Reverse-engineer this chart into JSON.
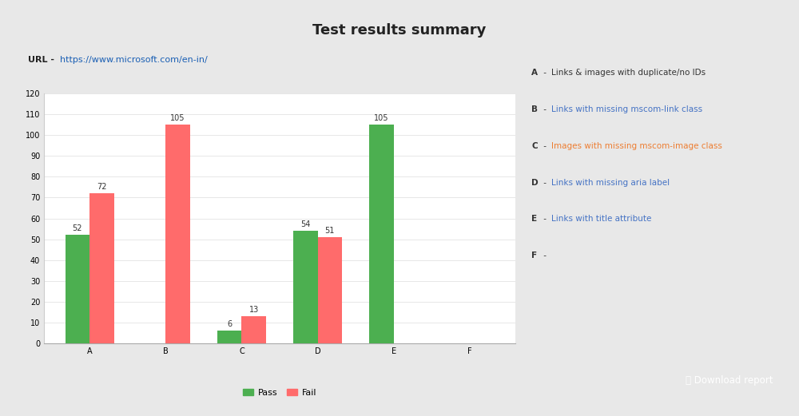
{
  "title": "Test results summary",
  "url_label": "URL - ",
  "url_text": "https://www.microsoft.com/en-in/",
  "categories": [
    "A",
    "B",
    "C",
    "D",
    "E",
    "F"
  ],
  "pass_values": [
    52,
    0,
    6,
    54,
    105,
    0
  ],
  "fail_values": [
    72,
    105,
    13,
    51,
    0,
    0
  ],
  "pass_color": "#4CAF50",
  "fail_color": "#FF6B6B",
  "ylim": [
    0,
    120
  ],
  "yticks": [
    0,
    10,
    20,
    30,
    40,
    50,
    60,
    70,
    80,
    90,
    100,
    110,
    120
  ],
  "legend_items": [
    {
      "label": "A",
      "label_color": "#333333",
      "dash": " - ",
      "desc": "Links & images with duplicate/no IDs",
      "desc_color": "#333333"
    },
    {
      "label": "B",
      "label_color": "#333333",
      "dash": " - ",
      "desc": "Links with missing mscom-link class",
      "desc_color": "#4472C4"
    },
    {
      "label": "C",
      "label_color": "#333333",
      "dash": " - ",
      "desc": "Images with missing mscom-image class",
      "desc_color": "#ED7D31"
    },
    {
      "label": "D",
      "label_color": "#333333",
      "dash": " - ",
      "desc": "Links with missing aria label",
      "desc_color": "#4472C4"
    },
    {
      "label": "E",
      "label_color": "#333333",
      "dash": " - ",
      "desc": "Links with title attribute",
      "desc_color": "#4472C4"
    },
    {
      "label": "F",
      "label_color": "#333333",
      "dash": " -",
      "desc": "",
      "desc_color": "#4472C4"
    }
  ],
  "outer_bg": "#e8e8e8",
  "panel_bg": "#ffffff",
  "bar_width": 0.32,
  "title_fontsize": 13,
  "axis_fontsize": 7,
  "annotation_fontsize": 7,
  "legend_text_fontsize": 7.5,
  "btn_color": "#4472C4",
  "btn_text": "⤓ Download report"
}
